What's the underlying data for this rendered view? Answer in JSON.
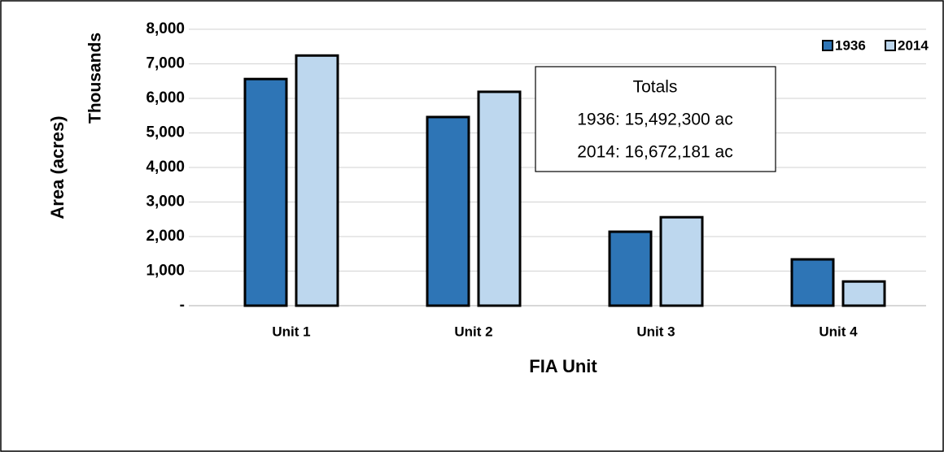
{
  "chart_data": {
    "type": "bar",
    "x_label": "FIA Unit",
    "y_label": "Area (acres)",
    "y_unit_label": "Thousands",
    "categories": [
      "Unit 1",
      "Unit 2",
      "Unit 3",
      "Unit 4"
    ],
    "series": [
      {
        "name": "1936",
        "color": "#2e75b6",
        "values": [
          6560,
          5460,
          2140,
          1340
        ]
      },
      {
        "name": "2014",
        "color": "#bdd7ee",
        "values": [
          7240,
          6190,
          2560,
          700
        ]
      }
    ],
    "ylim": [
      0,
      8000
    ],
    "yticks": [
      {
        "value": 0,
        "label": "-"
      },
      {
        "value": 1000,
        "label": "1,000"
      },
      {
        "value": 2000,
        "label": "2,000"
      },
      {
        "value": 3000,
        "label": "3,000"
      },
      {
        "value": 4000,
        "label": "4,000"
      },
      {
        "value": 5000,
        "label": "5,000"
      },
      {
        "value": 6000,
        "label": "6,000"
      },
      {
        "value": 7000,
        "label": "7,000"
      },
      {
        "value": 8000,
        "label": "8,000"
      }
    ],
    "grid": true,
    "legend": "top-right",
    "annotation": {
      "title": "Totals",
      "lines": [
        "1936: 15,492,300 ac",
        "2014: 16,672,181 ac"
      ]
    }
  }
}
